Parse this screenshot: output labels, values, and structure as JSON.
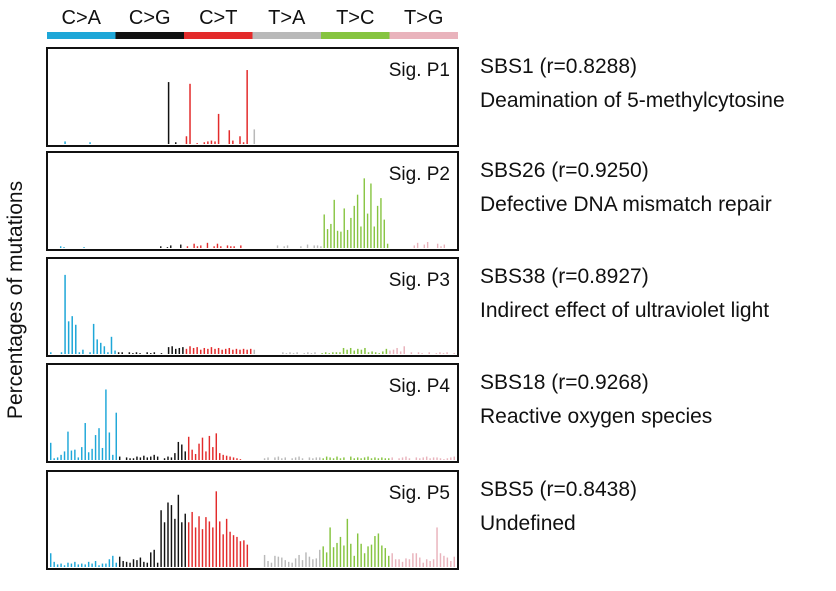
{
  "chart_data": {
    "type": "bar",
    "ylabel": "Percentages of mutations",
    "mutation_classes": [
      {
        "label": "C>A",
        "color": "#1ea7d8"
      },
      {
        "label": "C>G",
        "color": "#111111"
      },
      {
        "label": "C>T",
        "color": "#e32b2b"
      },
      {
        "label": "T>A",
        "color": "#b9b9b9"
      },
      {
        "label": "T>C",
        "color": "#86c440"
      },
      {
        "label": "T>G",
        "color": "#e9b3bc"
      }
    ],
    "panels": [
      {
        "title": "Sig. P1",
        "match": "SBS1 (r=0.8288)",
        "description": "Deamination of 5-methylcytosine",
        "values": [
          0,
          0,
          0,
          0,
          0.03,
          0,
          0,
          0,
          0,
          0,
          0,
          0.02,
          0,
          0,
          0,
          0,
          0,
          0,
          0,
          0,
          0,
          0,
          0,
          0,
          0,
          0,
          0,
          0,
          0,
          0,
          0,
          0,
          0,
          0.72,
          0,
          0.02,
          0,
          0,
          0.09,
          0.7,
          0,
          0.01,
          0,
          0.02,
          0.03,
          0.04,
          0.03,
          0.35,
          0,
          0,
          0.16,
          0.04,
          0,
          0.09,
          0.02,
          0.86,
          0,
          0.17,
          0,
          0,
          0,
          0,
          0,
          0,
          0,
          0,
          0,
          0,
          0,
          0,
          0,
          0,
          0,
          0,
          0,
          0,
          0,
          0,
          0,
          0,
          0,
          0,
          0,
          0,
          0,
          0,
          0,
          0,
          0,
          0,
          0,
          0,
          0,
          0,
          0,
          0,
          0,
          0,
          0,
          0,
          0,
          0,
          0,
          0,
          0,
          0,
          0,
          0,
          0,
          0,
          0,
          0,
          0,
          0
        ]
      },
      {
        "title": "Sig. P2",
        "match": "SBS26 (r=0.9250)",
        "description": "Defective DNA mismatch repair",
        "values": [
          0,
          0,
          0,
          0.02,
          0.01,
          0,
          0,
          0,
          0,
          0,
          0.01,
          0,
          0,
          0,
          0,
          0,
          0,
          0,
          0,
          0,
          0,
          0,
          0,
          0,
          0,
          0,
          0,
          0,
          0,
          0,
          0,
          0,
          0,
          0.02,
          0,
          0.01,
          0.03,
          0,
          0,
          0.04,
          0,
          0.02,
          0,
          0.05,
          0.02,
          0.03,
          0,
          0.06,
          0,
          0.02,
          0.05,
          0.02,
          0,
          0.03,
          0.02,
          0.02,
          0,
          0.03,
          0,
          0,
          0,
          0,
          0,
          0,
          0,
          0,
          0,
          0,
          0.03,
          0,
          0.02,
          0.03,
          0,
          0,
          0,
          0.02,
          0,
          0.04,
          0,
          0.03,
          0.03,
          0.02,
          0.39,
          0.22,
          0.28,
          0.56,
          0.2,
          0.19,
          0.46,
          0.21,
          0.35,
          0.49,
          0.62,
          0.25,
          0.81,
          0.4,
          0.75,
          0.25,
          0.49,
          0.58,
          0.33,
          0.05,
          0,
          0,
          0,
          0,
          0,
          0,
          0,
          0.03,
          0.06,
          0,
          0.04,
          0.07,
          0,
          0,
          0.05,
          0.02,
          0.04,
          0,
          0,
          0
        ]
      },
      {
        "title": "Sig. P3",
        "match": "SBS38 (r=0.8927)",
        "description": "Indirect effect of ultraviolet light",
        "values": [
          0.02,
          0,
          0,
          0.02,
          0.92,
          0.38,
          0.44,
          0.34,
          0.02,
          0.05,
          0,
          0.02,
          0.35,
          0.17,
          0.13,
          0.09,
          0.02,
          0.2,
          0.04,
          0.02,
          0.02,
          0,
          0.02,
          0.01,
          0.02,
          0.01,
          0,
          0.02,
          0.01,
          0.02,
          0,
          0.01,
          0,
          0.08,
          0.09,
          0.06,
          0.07,
          0.08,
          0.06,
          0.09,
          0.07,
          0.08,
          0.05,
          0.07,
          0.06,
          0.08,
          0.06,
          0.07,
          0.05,
          0.06,
          0.07,
          0.05,
          0.06,
          0.05,
          0.06,
          0.05,
          0.06,
          0.05,
          0,
          0,
          0,
          0,
          0,
          0,
          0,
          0.02,
          0.01,
          0.02,
          0.01,
          0.02,
          0,
          0.01,
          0.02,
          0.01,
          0.02,
          0,
          0.01,
          0.02,
          0.01,
          0.02,
          0.02,
          0.02,
          0.07,
          0.05,
          0.07,
          0.04,
          0.06,
          0.05,
          0.07,
          0.02,
          0.03,
          0.02,
          0.01,
          0.03,
          0.06,
          0.04,
          0.05,
          0.07,
          0.03,
          0.09,
          0,
          0.02,
          0,
          0.02,
          0.01,
          0,
          0.02,
          0,
          0.01,
          0.02,
          0.01,
          0.02,
          0,
          0.01
        ]
      },
      {
        "title": "Sig. P4",
        "match": "SBS18 (r=0.9268)",
        "description": "Reactive oxygen species",
        "values": [
          0.2,
          0.02,
          0.03,
          0.06,
          0.1,
          0.33,
          0.11,
          0.12,
          0.03,
          0.15,
          0.43,
          0.09,
          0.13,
          0.29,
          0.37,
          0.14,
          0.82,
          0.32,
          0.06,
          0.55,
          0.04,
          0,
          0.03,
          0.02,
          0.02,
          0.04,
          0.03,
          0.05,
          0.03,
          0.04,
          0.06,
          0.04,
          0,
          0.02,
          0.04,
          0.03,
          0.08,
          0.21,
          0.18,
          0.1,
          0.27,
          0.12,
          0.07,
          0.19,
          0.26,
          0.1,
          0.28,
          0.15,
          0.31,
          0.08,
          0.06,
          0.05,
          0.04,
          0.03,
          0.02,
          0.01,
          0,
          0,
          0,
          0,
          0,
          0,
          0.02,
          0.03,
          0,
          0.03,
          0.04,
          0.02,
          0.03,
          0,
          0.02,
          0.03,
          0.04,
          0.02,
          0,
          0.03,
          0.02,
          0.03,
          0.03,
          0.02,
          0.04,
          0.03,
          0.02,
          0.04,
          0.02,
          0.03,
          0,
          0.04,
          0.02,
          0.03,
          0.02,
          0.03,
          0.04,
          0.02,
          0.03,
          0.02,
          0.03,
          0.02,
          0.02,
          0.03,
          0,
          0.02,
          0.03,
          0.04,
          0.02,
          0,
          0.03,
          0.02,
          0.03,
          0.04,
          0.02,
          0.03,
          0.03,
          0.02,
          0.01,
          0.02,
          0.03,
          0.04
        ]
      },
      {
        "title": "Sig. P5",
        "match": "SBS5 (r=0.8438)",
        "description": "Undefined",
        "values": [
          0.16,
          0.06,
          0.03,
          0.04,
          0.02,
          0.05,
          0.04,
          0.06,
          0.03,
          0.04,
          0.03,
          0.06,
          0.04,
          0.07,
          0.02,
          0.04,
          0.04,
          0.09,
          0.13,
          0.05,
          0.12,
          0.07,
          0.06,
          0.05,
          0.09,
          0.08,
          0.11,
          0.06,
          0.05,
          0.17,
          0.2,
          0.05,
          0.66,
          0.52,
          0.75,
          0.72,
          0.56,
          0.84,
          0.52,
          0.62,
          0.52,
          0.64,
          0.46,
          0.59,
          0.44,
          0.58,
          0.53,
          0.46,
          0.88,
          0.53,
          0.38,
          0.56,
          0.41,
          0.37,
          0.35,
          0.3,
          0.31,
          0.26,
          0,
          0,
          0,
          0,
          0.14,
          0.07,
          0.05,
          0.13,
          0.12,
          0.11,
          0.08,
          0.06,
          0.05,
          0.1,
          0.14,
          0.08,
          0.17,
          0.12,
          0.09,
          0.1,
          0.2,
          0.24,
          0.17,
          0.46,
          0.23,
          0.28,
          0.35,
          0.25,
          0.56,
          0.27,
          0.13,
          0.39,
          0.27,
          0.16,
          0.24,
          0.26,
          0.36,
          0.39,
          0.25,
          0.22,
          0.13,
          0.16,
          0.09,
          0.09,
          0.06,
          0.1,
          0.09,
          0.16,
          0.16,
          0.11,
          0.05,
          0.09,
          0.07,
          0.09,
          0.46,
          0.16,
          0.13,
          0.11,
          0.07,
          0.12
        ]
      }
    ]
  }
}
